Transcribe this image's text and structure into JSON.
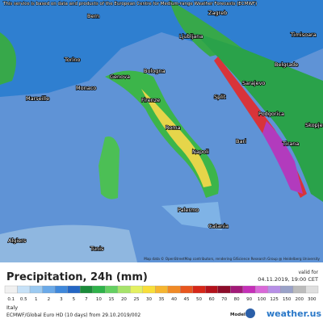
{
  "header": {
    "notice": "This service is based on data and products of the European Centre for Medium-range Weather Forecasts (ECMWF)"
  },
  "map": {
    "attribution": "Map data © OpenStreetMap contributors, rendering GIScience Research Group @ Heidelberg University",
    "cities": [
      "Bern",
      "Zagreb",
      "Ljubljana",
      "Timisoara",
      "Torino",
      "Belgrade",
      "Genova",
      "Bologna",
      "Monaco",
      "Marseille",
      "Firenze",
      "Sarajevo",
      "Split",
      "Podgorica",
      "Skopje",
      "Roma",
      "Bari",
      "Napoli",
      "Tirana",
      "Palermo",
      "Catania",
      "Algiers",
      "Tunis"
    ]
  },
  "legend": {
    "title": "Precipitation, 24h (mm)",
    "valid_label": "valid for",
    "valid_time": "04.11.2019, 19:00 CET",
    "ticks": [
      0.1,
      0.5,
      1,
      2,
      3,
      5,
      7,
      10,
      15,
      20,
      25,
      30,
      35,
      40,
      45,
      50,
      60,
      70,
      80,
      90,
      100,
      125,
      150,
      200,
      300
    ],
    "colors": [
      "#f0f0f0",
      "#c7e1f7",
      "#9ccaf1",
      "#6aa9e8",
      "#3f88db",
      "#2466c4",
      "#1b8b3a",
      "#2fb24a",
      "#64d061",
      "#a6e36a",
      "#e3f060",
      "#f8de3a",
      "#f6b630",
      "#f08a26",
      "#e8561e",
      "#d62718",
      "#b3121b",
      "#8c0c2a",
      "#a21a78",
      "#c530b8",
      "#d968d8",
      "#b78fe6",
      "#9aa2c8",
      "#bcbcbc",
      "#dedede"
    ]
  },
  "footer": {
    "region": "Italy",
    "model_run": "ECMWF/Global Euro HD (10 days) from 29.10.2019/002",
    "model_label": "Model:",
    "brand": "weather.us"
  }
}
